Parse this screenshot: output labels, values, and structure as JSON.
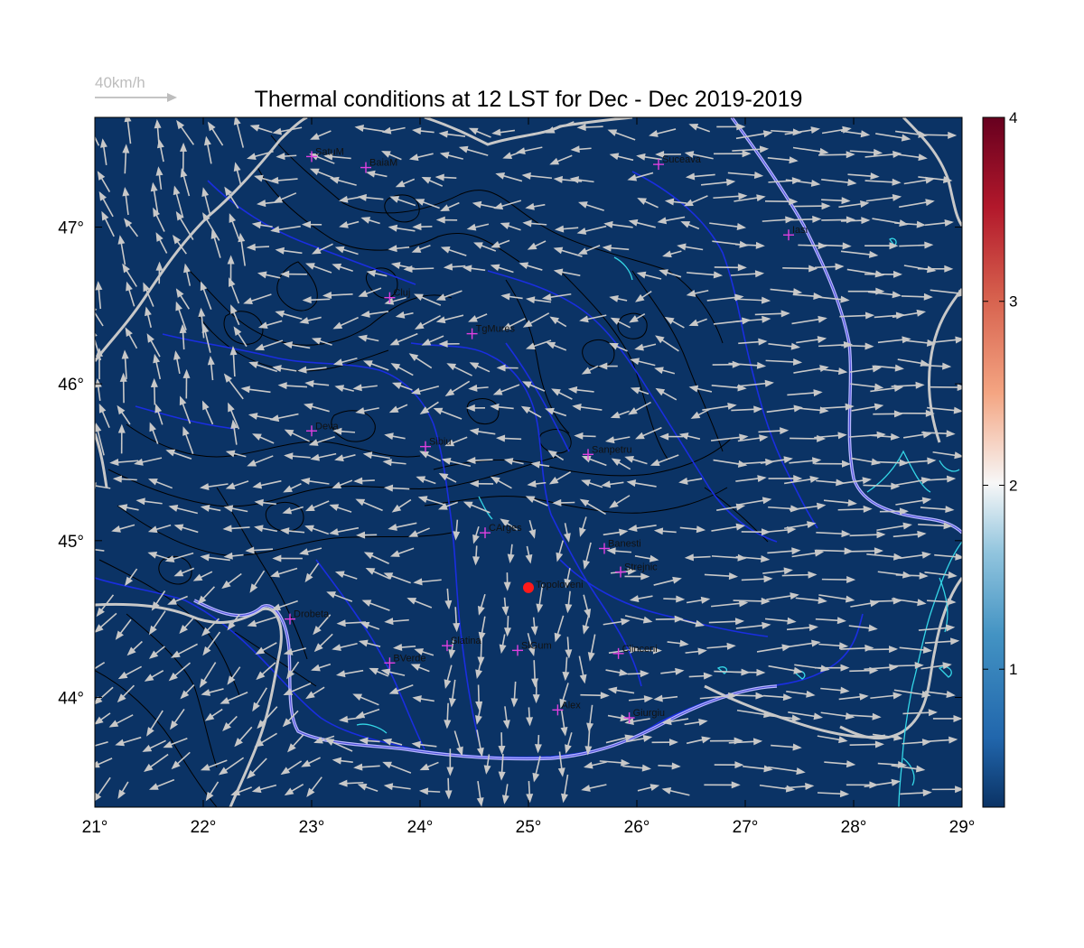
{
  "title": "Thermal conditions at 12 LST for Dec - Dec  2019-2019",
  "reference_arrow": {
    "label": "40km/h",
    "speed_kmh": 40
  },
  "map": {
    "lon_range": [
      21,
      29
    ],
    "lat_range": [
      43.3,
      47.7
    ],
    "x_ticks": [
      "21°",
      "22°",
      "23°",
      "24°",
      "25°",
      "26°",
      "27°",
      "28°",
      "29°"
    ],
    "y_ticks": [
      "44°",
      "45°",
      "46°",
      "47°"
    ],
    "background_color": "#0b3365",
    "contour_color": "#000000",
    "river_color": "#1a2ee0",
    "border_color": "#c8c8c8",
    "lake_color": "#34d6e6",
    "station_marker_color": "#e040e0",
    "highlight_marker_color": "#ff1a1a",
    "wind_arrow_color": "#c8c8c8"
  },
  "stations": [
    {
      "name": "SatuM",
      "lon": 23.0,
      "lat": 47.45
    },
    {
      "name": "BaiaM",
      "lon": 23.5,
      "lat": 47.38
    },
    {
      "name": "Suceava",
      "lon": 26.2,
      "lat": 47.4
    },
    {
      "name": "Iasi",
      "lon": 27.4,
      "lat": 46.95
    },
    {
      "name": "Cluj",
      "lon": 23.72,
      "lat": 46.55
    },
    {
      "name": "TgMures",
      "lon": 24.48,
      "lat": 46.32
    },
    {
      "name": "Deva",
      "lon": 23.0,
      "lat": 45.7
    },
    {
      "name": "Sibiu",
      "lon": 24.05,
      "lat": 45.6
    },
    {
      "name": "Sanpetru",
      "lon": 25.55,
      "lat": 45.55
    },
    {
      "name": "CArges",
      "lon": 24.6,
      "lat": 45.05
    },
    {
      "name": "Banesti",
      "lon": 25.7,
      "lat": 44.95
    },
    {
      "name": "Strejnic",
      "lon": 25.85,
      "lat": 44.8
    },
    {
      "name": "Drobeta",
      "lon": 22.8,
      "lat": 44.5
    },
    {
      "name": "Slatina",
      "lon": 24.25,
      "lat": 44.33
    },
    {
      "name": "SlGum",
      "lon": 24.9,
      "lat": 44.3
    },
    {
      "name": "Clinceni",
      "lon": 25.83,
      "lat": 44.28
    },
    {
      "name": "BVerde",
      "lon": 23.72,
      "lat": 44.22
    },
    {
      "name": "Alex",
      "lon": 25.27,
      "lat": 43.92
    },
    {
      "name": "Giurgiu",
      "lon": 25.93,
      "lat": 43.87
    }
  ],
  "highlight_station": {
    "name": "Topoloveni",
    "lon": 25.0,
    "lat": 44.7
  },
  "colorbar": {
    "min": 0.25,
    "max": 4.0,
    "ticks": [
      "1",
      "2",
      "3",
      "4"
    ],
    "tick_values": [
      1,
      2,
      3,
      4
    ],
    "colors": [
      "#0b3365",
      "#2166ac",
      "#4393c3",
      "#92c5de",
      "#f7f7f7",
      "#f4a582",
      "#d6604d",
      "#b2182b",
      "#67001f"
    ]
  }
}
